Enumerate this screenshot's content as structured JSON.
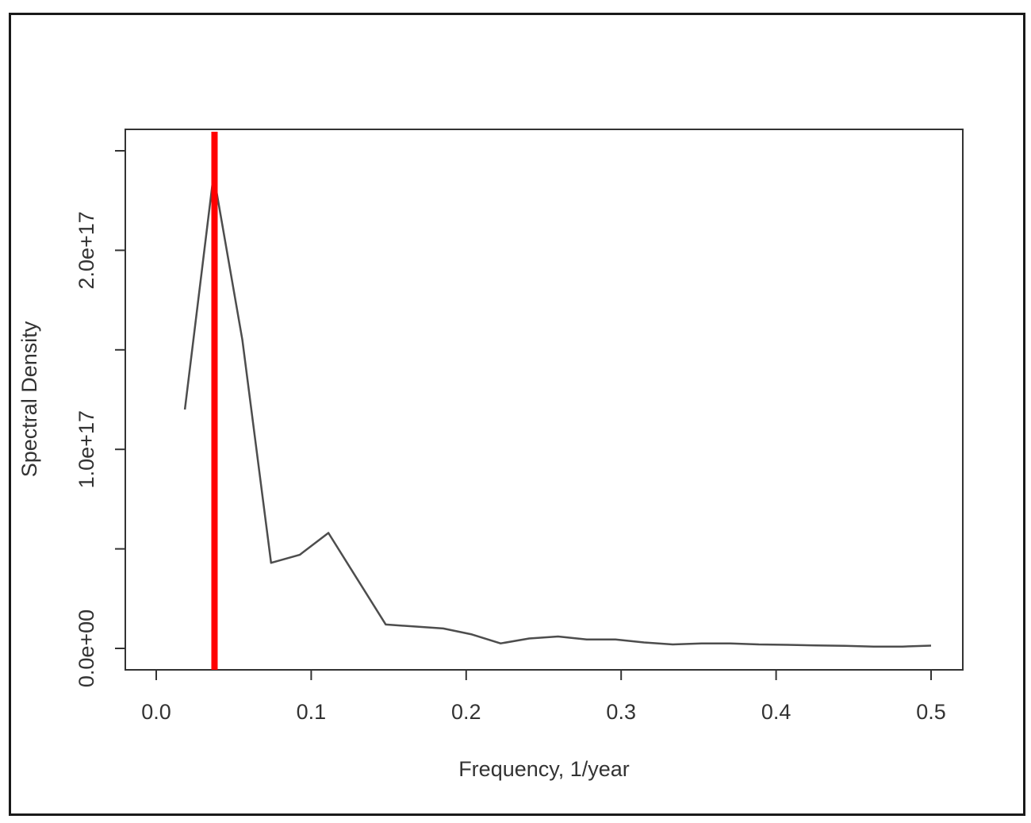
{
  "chart_data": {
    "type": "line",
    "xlabel": "Frequency, 1/year",
    "ylabel": "Spectral Density",
    "xlim": [
      0,
      0.5
    ],
    "ylim": [
      0,
      2.5e+17
    ],
    "x_ticks": [
      {
        "value": 0.0,
        "label": "0.0"
      },
      {
        "value": 0.1,
        "label": "0.1"
      },
      {
        "value": 0.2,
        "label": "0.2"
      },
      {
        "value": 0.3,
        "label": "0.3"
      },
      {
        "value": 0.4,
        "label": "0.4"
      },
      {
        "value": 0.5,
        "label": "0.5"
      }
    ],
    "y_ticks": [
      {
        "value": 0,
        "label": "0.0e+00"
      },
      {
        "value": 5e+16,
        "label": ""
      },
      {
        "value": 1e+17,
        "label": "1.0e+17"
      },
      {
        "value": 1.5e+17,
        "label": ""
      },
      {
        "value": 2e+17,
        "label": "2.0e+17"
      },
      {
        "value": 2.5e+17,
        "label": ""
      }
    ],
    "grid": false,
    "series": [
      {
        "color": "#4d4d4d",
        "points": [
          [
            0.0185,
            1.2e+17
          ],
          [
            0.037,
            2.38e+17
          ],
          [
            0.0556,
            1.55e+17
          ],
          [
            0.0741,
            4.3e+16
          ],
          [
            0.0926,
            4.7e+16
          ],
          [
            0.1111,
            5.8e+16
          ],
          [
            0.1296,
            3.5e+16
          ],
          [
            0.1481,
            1.2e+16
          ],
          [
            0.1667,
            1.1e+16
          ],
          [
            0.1852,
            1e+16
          ],
          [
            0.2037,
            7000000000000000.0
          ],
          [
            0.2222,
            2500000000000000.0
          ],
          [
            0.2407,
            5000000000000000.0
          ],
          [
            0.2593,
            6000000000000000.0
          ],
          [
            0.2778,
            4500000000000000.0
          ],
          [
            0.2963,
            4500000000000000.0
          ],
          [
            0.3148,
            3000000000000000.0
          ],
          [
            0.3333,
            2000000000000000.0
          ],
          [
            0.3519,
            2500000000000000.0
          ],
          [
            0.3704,
            2500000000000000.0
          ],
          [
            0.3889,
            2000000000000000.0
          ],
          [
            0.4074,
            1800000000000000.0
          ],
          [
            0.4259,
            1500000000000000.0
          ],
          [
            0.4444,
            1300000000000000.0
          ],
          [
            0.463,
            900000000000000.0
          ],
          [
            0.4815,
            900000000000000.0
          ],
          [
            0.5,
            1400000000000000.0
          ]
        ]
      }
    ],
    "vline": {
      "x": 0.0376,
      "color": "#ff0000"
    }
  }
}
